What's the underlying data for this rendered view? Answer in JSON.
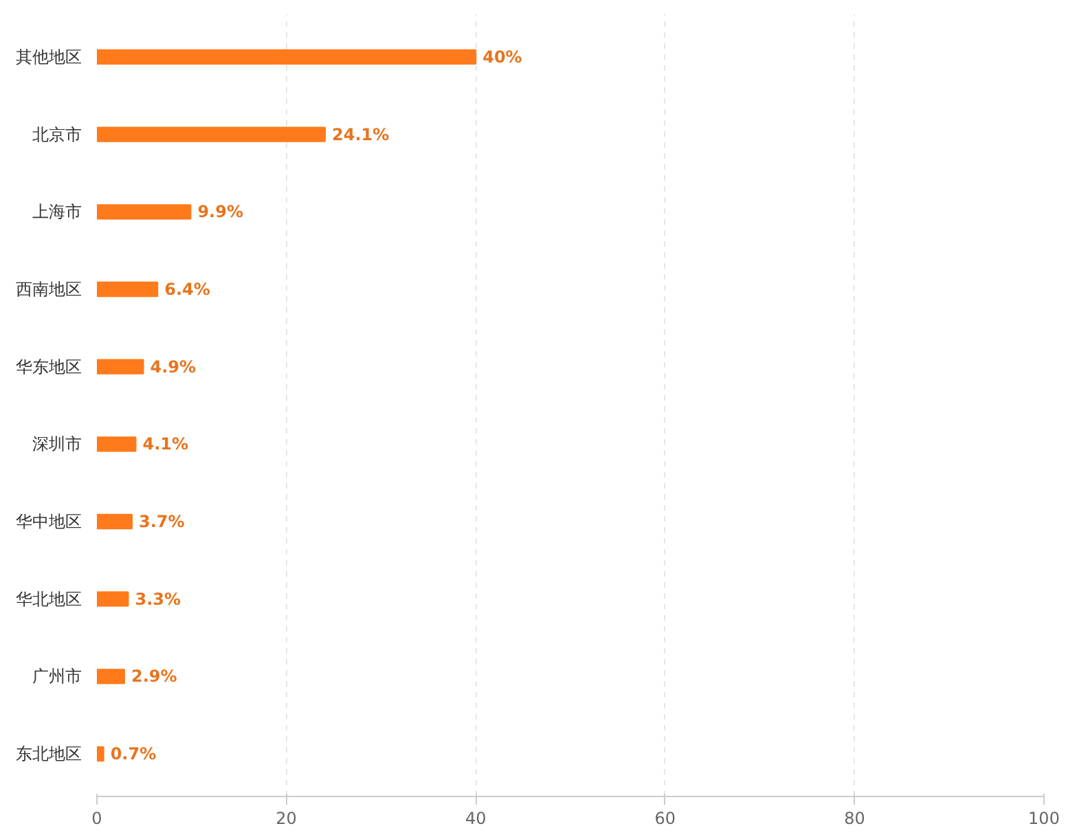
{
  "chart_data": {
    "type": "bar",
    "orientation": "horizontal",
    "categories": [
      "其他地区",
      "北京市",
      "上海市",
      "西南地区",
      "华东地区",
      "深圳市",
      "华中地区",
      "华北地区",
      "广州市",
      "东北地区"
    ],
    "values": [
      40,
      24.1,
      9.9,
      6.4,
      4.9,
      4.1,
      3.7,
      3.3,
      2.9,
      0.7
    ],
    "value_labels": [
      "40%",
      "24.1%",
      "9.9%",
      "6.4%",
      "4.9%",
      "4.1%",
      "3.7%",
      "3.3%",
      "2.9%",
      "0.7%"
    ],
    "color": "#ff7a1a",
    "xlim": [
      0,
      100
    ],
    "xticks": [
      0,
      20,
      40,
      60,
      80,
      100
    ],
    "grid": "x"
  }
}
